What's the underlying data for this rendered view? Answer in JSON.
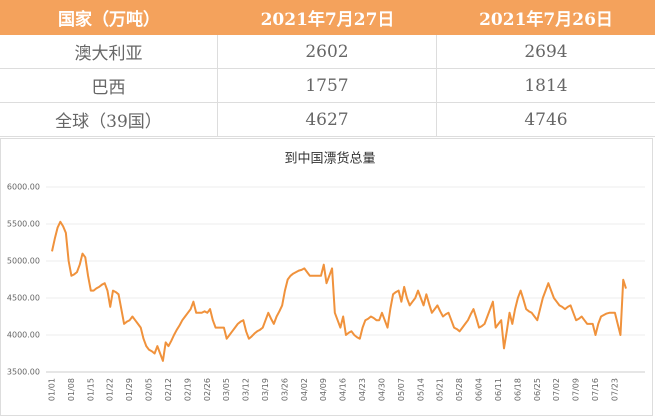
{
  "table": {
    "header": [
      "国家（万吨）",
      "2021年7月27日",
      "2021年7月26日"
    ],
    "rows": [
      [
        "澳大利亚",
        "2602",
        "2694"
      ],
      [
        "巴西",
        "1757",
        "1814"
      ],
      [
        "全球（39国）",
        "4627",
        "4746"
      ]
    ]
  },
  "chart_data": {
    "type": "line",
    "title": "到中国漂货总量",
    "color": "#f0923c",
    "grid": true,
    "ylim": [
      3500,
      6000
    ],
    "yticks": [
      {
        "value": 3500,
        "label": "3500.00"
      },
      {
        "value": 4000,
        "label": "4000.00"
      },
      {
        "value": 4500,
        "label": "4500.00"
      },
      {
        "value": 5000,
        "label": "5000.00"
      },
      {
        "value": 5500,
        "label": "5500.00"
      },
      {
        "value": 6000,
        "label": "6000.00"
      }
    ],
    "categories": [
      "01/01",
      null,
      null,
      null,
      null,
      null,
      null,
      "01/08",
      null,
      null,
      null,
      null,
      null,
      null,
      "01/15",
      null,
      null,
      null,
      null,
      null,
      null,
      "01/22",
      null,
      null,
      null,
      null,
      null,
      null,
      "01/29",
      null,
      null,
      null,
      null,
      null,
      null,
      "02/05",
      null,
      null,
      null,
      null,
      null,
      null,
      "02/12",
      null,
      null,
      null,
      null,
      null,
      null,
      "02/19",
      null,
      null,
      null,
      null,
      null,
      null,
      "02/26",
      null,
      null,
      null,
      null,
      null,
      null,
      "03/05",
      null,
      null,
      null,
      null,
      null,
      null,
      "03/12",
      null,
      null,
      null,
      null,
      null,
      null,
      "03/19",
      null,
      null,
      null,
      null,
      null,
      null,
      "03/26",
      null,
      null,
      null,
      null,
      null,
      null,
      "04/02",
      null,
      null,
      null,
      null,
      null,
      null,
      "04/09",
      null,
      null,
      null,
      null,
      null,
      null,
      "04/16",
      null,
      null,
      null,
      null,
      null,
      null,
      "04/23",
      null,
      null,
      null,
      null,
      null,
      null,
      "04/30",
      null,
      null,
      null,
      null,
      null,
      null,
      "05/07",
      null,
      null,
      null,
      null,
      null,
      null,
      "05/14",
      null,
      null,
      null,
      null,
      null,
      null,
      "05/21",
      null,
      null,
      null,
      null,
      null,
      null,
      "05/28",
      null,
      null,
      null,
      null,
      null,
      null,
      "06/04",
      null,
      null,
      null,
      null,
      null,
      null,
      "06/11",
      null,
      null,
      null,
      null,
      null,
      null,
      "06/18",
      null,
      null,
      null,
      null,
      null,
      null,
      "06/25",
      null,
      null,
      null,
      null,
      null,
      null,
      "07/02",
      null,
      null,
      null,
      null,
      null,
      null,
      "07/09",
      null,
      null,
      null,
      null,
      null,
      null,
      "07/16",
      null,
      null,
      null,
      null,
      null,
      null,
      "07/23",
      null,
      null,
      null,
      null
    ],
    "values": [
      5130,
      5300,
      5450,
      5530,
      5470,
      5380,
      5000,
      4800,
      4820,
      4850,
      4950,
      5100,
      5050,
      4800,
      4600,
      4600,
      4630,
      4650,
      4680,
      4700,
      4600,
      4380,
      4600,
      4580,
      4550,
      4350,
      4150,
      4180,
      4200,
      4250,
      4200,
      4150,
      4100,
      3950,
      3850,
      3800,
      3780,
      3750,
      3850,
      3750,
      3650,
      3900,
      3850,
      3920,
      4000,
      4070,
      4130,
      4200,
      4250,
      4300,
      4350,
      4450,
      4300,
      4300,
      4300,
      4320,
      4300,
      4350,
      4200,
      4100,
      4100,
      4100,
      4100,
      3950,
      4000,
      4050,
      4100,
      4150,
      4180,
      4200,
      4050,
      3950,
      3980,
      4020,
      4050,
      4070,
      4100,
      4200,
      4300,
      4220,
      4150,
      4250,
      4320,
      4400,
      4600,
      4750,
      4800,
      4830,
      4850,
      4870,
      4880,
      4900,
      4850,
      4800,
      4800,
      4800,
      4800,
      4800,
      4950,
      4700,
      4800,
      4900,
      4300,
      4200,
      4100,
      4250,
      4000,
      4030,
      4050,
      4000,
      3970,
      3950,
      4100,
      4200,
      4220,
      4250,
      4230,
      4200,
      4200,
      4300,
      4200,
      4100,
      4350,
      4550,
      4580,
      4600,
      4450,
      4650,
      4500,
      4400,
      4450,
      4500,
      4600,
      4500,
      4400,
      4550,
      4420,
      4300,
      4350,
      4400,
      4320,
      4250,
      4280,
      4300,
      4200,
      4100,
      4080,
      4050,
      4100,
      4150,
      4200,
      4280,
      4350,
      4230,
      4100,
      4120,
      4150,
      4250,
      4350,
      4450,
      4100,
      4150,
      4200,
      3820,
      4050,
      4300,
      4150,
      4350,
      4500,
      4600,
      4480,
      4350,
      4320,
      4300,
      4250,
      4200,
      4350,
      4500,
      4600,
      4700,
      4600,
      4500,
      4450,
      4400,
      4380,
      4350,
      4380,
      4400,
      4300,
      4200,
      4220,
      4250,
      4200,
      4150,
      4150,
      4150,
      4000,
      4150,
      4250,
      4270,
      4290,
      4300,
      4300,
      4300,
      4150,
      4000,
      4746,
      4627
    ]
  }
}
